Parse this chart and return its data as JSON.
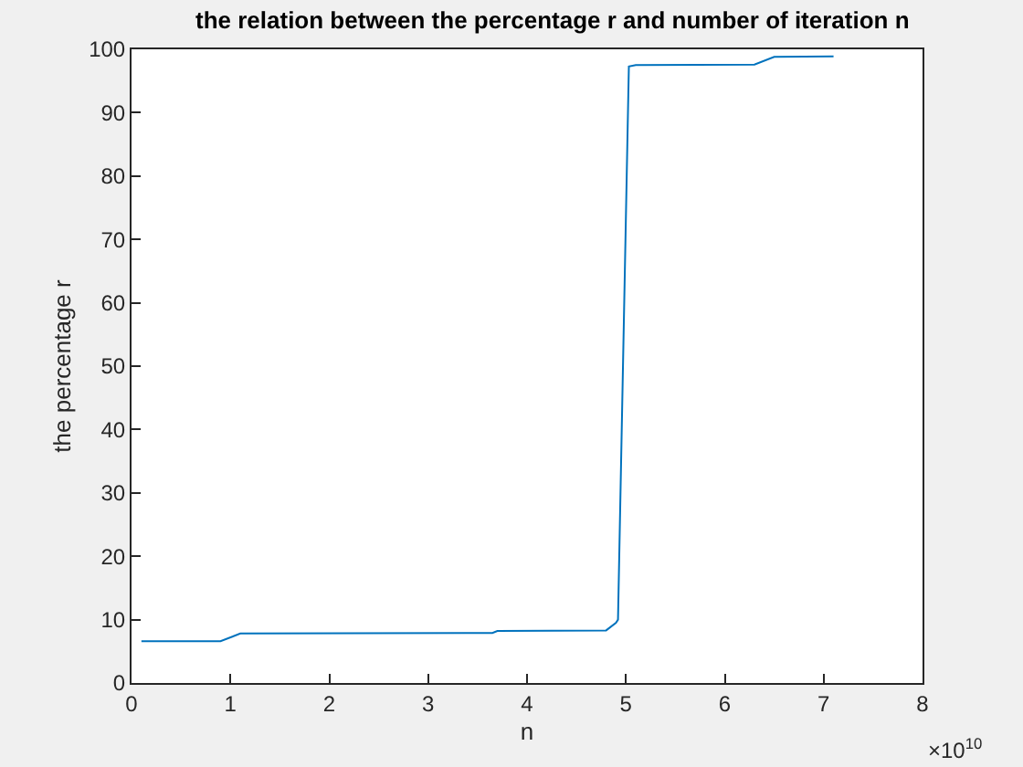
{
  "chart_data": {
    "type": "line",
    "title": "the relation between the percentage r and number of iteration n",
    "xlabel": "n",
    "ylabel": "the percentage r",
    "annotations": [
      "×10$^{10}$"
    ],
    "x": [
      0.1,
      0.9,
      1.1,
      3.65,
      3.7,
      4.8,
      4.9,
      4.92,
      5.03,
      5.1,
      6.3,
      6.5,
      7.1
    ],
    "series": [
      {
        "color": "#0072bd",
        "values": [
          6.6,
          6.6,
          7.8,
          7.9,
          8.2,
          8.3,
          9.5,
          10,
          97.3,
          97.5,
          97.6,
          98.8,
          98.9
        ]
      }
    ],
    "xlim": [
      0,
      8
    ],
    "xticks": [
      0,
      1,
      2,
      3,
      4,
      5,
      6,
      7,
      8
    ],
    "ylim": [
      0,
      100
    ],
    "yticks": [
      0,
      10,
      20,
      30,
      40,
      50,
      60,
      70,
      80,
      90,
      100
    ],
    "marker": "none",
    "line_style": "solid"
  }
}
